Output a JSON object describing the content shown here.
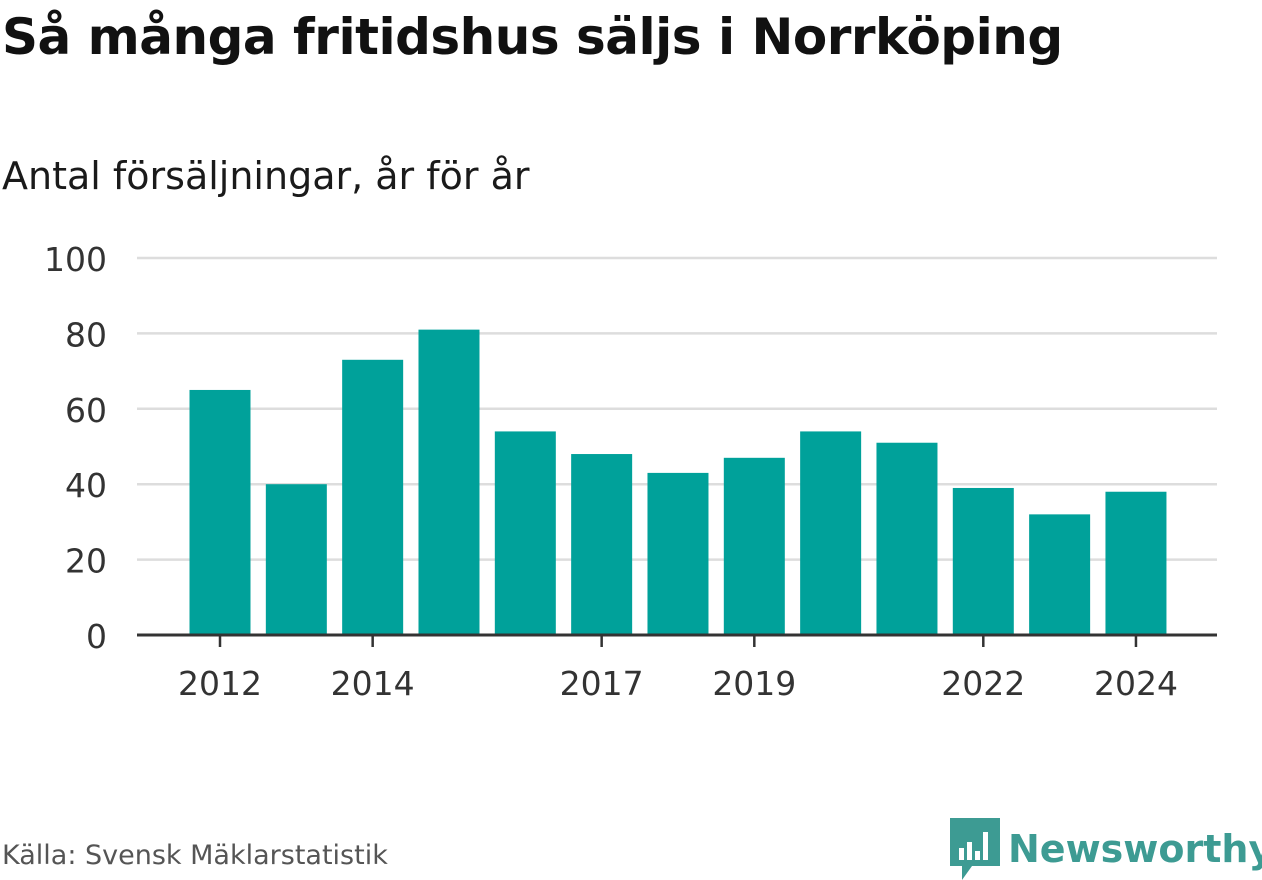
{
  "title": "Så många fritidshus säljs i Norrköping",
  "subtitle": "Antal försäljningar, år för år",
  "source": "Källa: Svensk Mäklarstatistik",
  "brand": {
    "name": "Newsworthy",
    "icon": "newsworthy-logo-icon",
    "color": "#3d9b93"
  },
  "colors": {
    "bar": "#00a19a",
    "grid": "#dddddd",
    "axis": "#333333",
    "text": "#333333"
  },
  "chart_data": {
    "type": "bar",
    "x": [
      2012,
      2013,
      2014,
      2015,
      2016,
      2017,
      2018,
      2019,
      2020,
      2021,
      2022,
      2023,
      2024
    ],
    "values": [
      65,
      40,
      73,
      81,
      54,
      48,
      43,
      47,
      54,
      51,
      39,
      32,
      38
    ],
    "x_tick_labels": [
      "2012",
      "2014",
      "2017",
      "2019",
      "2022",
      "2024"
    ],
    "y_ticks": [
      0,
      20,
      40,
      60,
      80,
      100
    ],
    "ylim": [
      0,
      100
    ],
    "grid": true,
    "legend": false
  }
}
